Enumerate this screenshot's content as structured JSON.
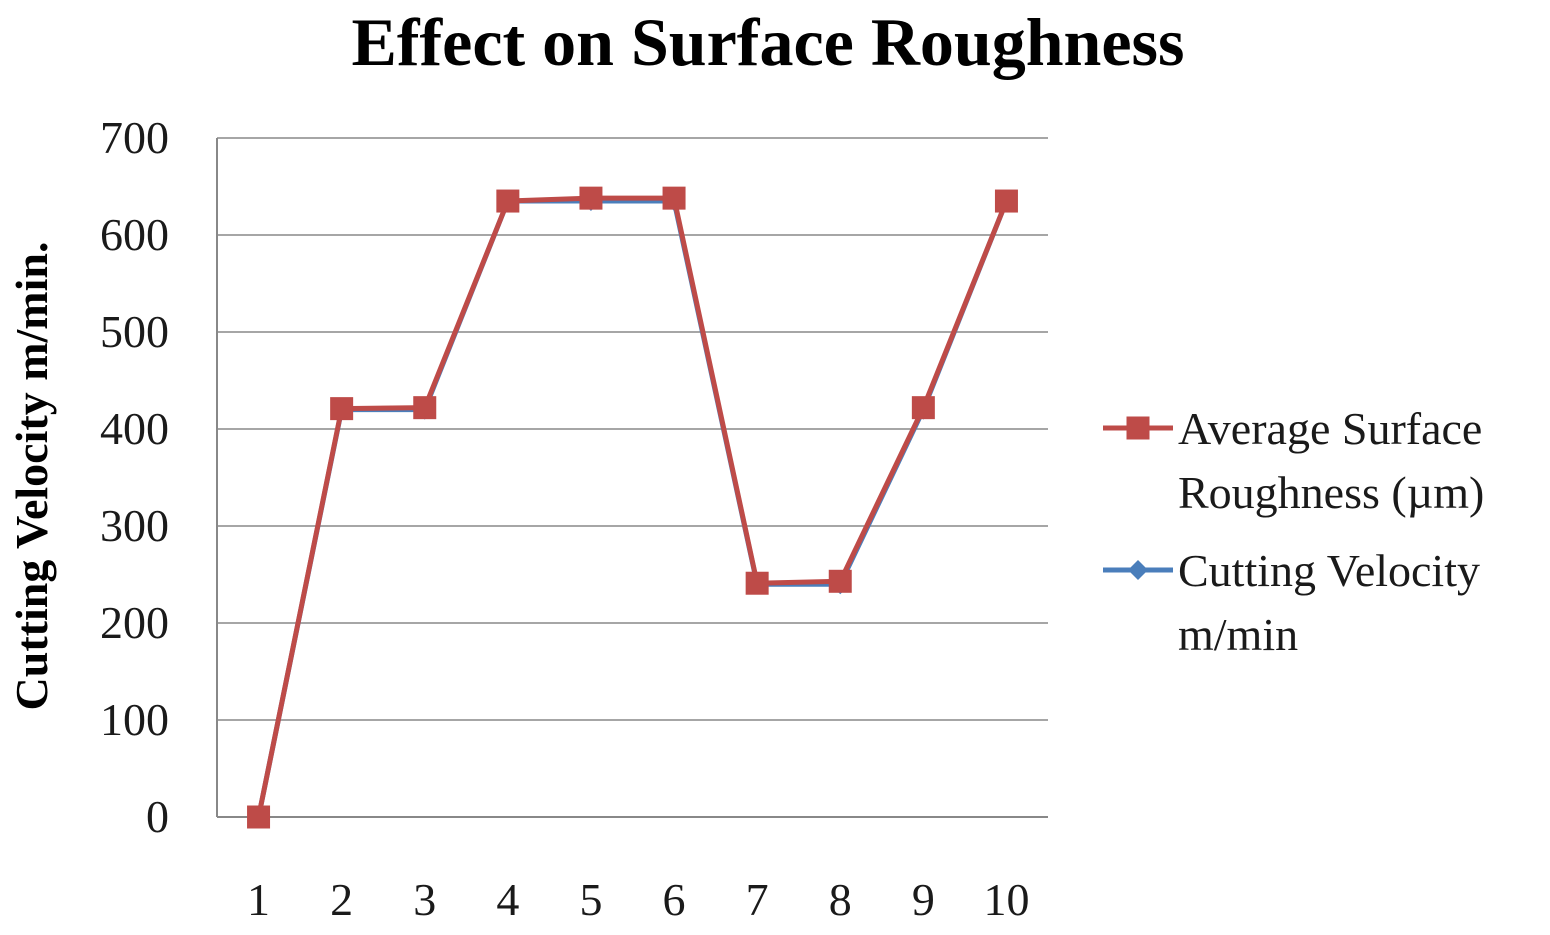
{
  "chart_data": {
    "type": "line",
    "title": "Effect on Surface Roughness",
    "xlabel": "",
    "ylabel": "Cutting Velocity m/min.",
    "categories": [
      "1",
      "2",
      "3",
      "4",
      "5",
      "6",
      "7",
      "8",
      "9",
      "10"
    ],
    "ylim": [
      0,
      700
    ],
    "yticks": [
      "0",
      "100",
      "200",
      "300",
      "400",
      "500",
      "600",
      "700"
    ],
    "grid": true,
    "legend_position": "right",
    "series": [
      {
        "name": "Cutting Velocity m/min",
        "marker": "diamond",
        "color": "#4a7ebb",
        "values": [
          0,
          420,
          420,
          635,
          635,
          635,
          240,
          240,
          420,
          635
        ]
      },
      {
        "name": "Average Surface Roughness (µm)",
        "marker": "square",
        "color": "#be4b48",
        "values": [
          0,
          421,
          422,
          635,
          638,
          638,
          241,
          243,
          422,
          635
        ]
      }
    ],
    "legend": [
      {
        "lines": [
          "Average Surface",
          "Roughness (µm)"
        ],
        "series_index": 1
      },
      {
        "lines": [
          "Cutting Velocity",
          "m/min"
        ],
        "series_index": 0
      }
    ]
  }
}
